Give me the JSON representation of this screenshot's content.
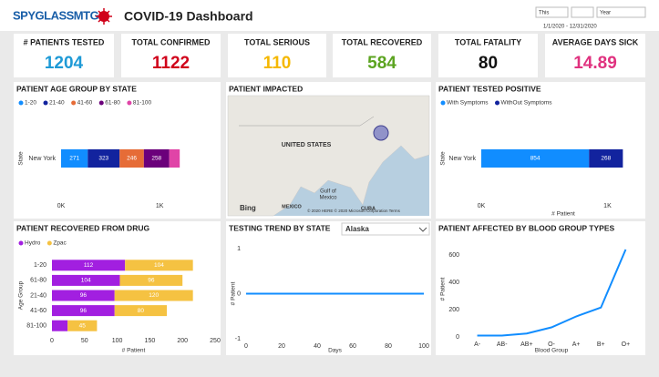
{
  "header": {
    "logo": "SPYGLASSMTG",
    "title": "COVID-19 Dashboard",
    "filters": [
      "This",
      "Year"
    ],
    "date_range": "1/1/2020 - 12/31/2020"
  },
  "kpis": [
    {
      "label": "# PATIENTS TESTED",
      "value": 1204,
      "color": "#1E9AD6"
    },
    {
      "label": "TOTAL CONFIRMED",
      "value": 1122,
      "color": "#D0021B"
    },
    {
      "label": "TOTAL SERIOUS",
      "value": 110,
      "color": "#F5B800"
    },
    {
      "label": "TOTAL RECOVERED",
      "value": 584,
      "color": "#5CA421"
    },
    {
      "label": "TOTAL FATALITY",
      "value": 80,
      "color": "#111111"
    },
    {
      "label": "AVERAGE DAYS SICK",
      "value": 14.89,
      "color": "#E0327F"
    }
  ],
  "map": {
    "title": "PATIENT IMPACTED",
    "labels": [
      "UNITED STATES",
      "Gulf of",
      "Mexico",
      "MEXICO",
      "CUBA",
      "Bing",
      "© 2020 HERE © 2020 Microsoft Corporation Terms"
    ]
  },
  "chart_data": [
    {
      "type": "hbar",
      "stacked": true,
      "title": "PATIENT AGE GROUP BY STATE",
      "categories": [
        "New York"
      ],
      "series": [
        {
          "name": "1-20",
          "color": "#118DFF",
          "values": [
            271
          ]
        },
        {
          "name": "21-40",
          "color": "#12239E",
          "values": [
            323
          ]
        },
        {
          "name": "41-60",
          "color": "#E66C37",
          "values": [
            246
          ]
        },
        {
          "name": "61-80",
          "color": "#6B007B",
          "values": [
            258
          ]
        },
        {
          "name": "81-100",
          "color": "#E044A7",
          "values": [
            106
          ]
        }
      ],
      "xlim": [
        0,
        1600
      ],
      "xticks": [
        {
          "value": 0,
          "label": "0K"
        },
        {
          "value": 1000,
          "label": "1K"
        }
      ],
      "ylabel": "State"
    },
    {
      "type": "hbar",
      "stacked": true,
      "title": "PATIENT TESTED POSITIVE",
      "categories": [
        "New York"
      ],
      "series": [
        {
          "name": "With Symptoms",
          "color": "#118DFF",
          "values": [
            854
          ]
        },
        {
          "name": "WithOut Symptoms",
          "color": "#12239E",
          "values": [
            268
          ]
        }
      ],
      "xlim": [
        0,
        1300
      ],
      "xticks": [
        {
          "value": 0,
          "label": "0K"
        },
        {
          "value": 1000,
          "label": "1K"
        }
      ],
      "xlabel": "# Patient",
      "ylabel": "State"
    },
    {
      "type": "hbar",
      "stacked": true,
      "title": "PATIENT RECOVERED FROM DRUG",
      "categories": [
        "1-20",
        "61-80",
        "21-40",
        "41-60",
        "81-100"
      ],
      "series": [
        {
          "name": "Hydro",
          "color": "#A21FE0",
          "values": [
            112,
            104,
            96,
            96,
            24
          ]
        },
        {
          "name": "Zpac",
          "color": "#F5C242",
          "values": [
            104,
            96,
            120,
            80,
            45
          ]
        }
      ],
      "xlim": [
        0,
        250
      ],
      "xticks": [
        0,
        50,
        100,
        150,
        200,
        250
      ],
      "xlabel": "# Patient",
      "ylabel": "Age Group"
    },
    {
      "type": "line",
      "title": "TESTING TREND BY STATE",
      "dropdown": "Alaska",
      "x": [
        0,
        100
      ],
      "values": [
        0,
        0
      ],
      "color": "#118DFF",
      "xlim": [
        0,
        100
      ],
      "xticks": [
        0,
        20,
        40,
        60,
        80,
        100
      ],
      "ylim": [
        -1,
        1
      ],
      "yticks": [
        -1,
        0,
        1
      ],
      "xlabel": "Days",
      "ylabel": "# Patient"
    },
    {
      "type": "line",
      "title": "PATIENT AFFECTED BY BLOOD GROUP TYPES",
      "categories": [
        "A-",
        "AB-",
        "AB+",
        "O-",
        "A+",
        "B+",
        "O+"
      ],
      "values": [
        10,
        10,
        25,
        70,
        150,
        215,
        640
      ],
      "color": "#118DFF",
      "ylim": [
        0,
        700
      ],
      "yticks": [
        0,
        200,
        400,
        600
      ],
      "xlabel": "Blood Group",
      "ylabel": "# Patient"
    }
  ]
}
